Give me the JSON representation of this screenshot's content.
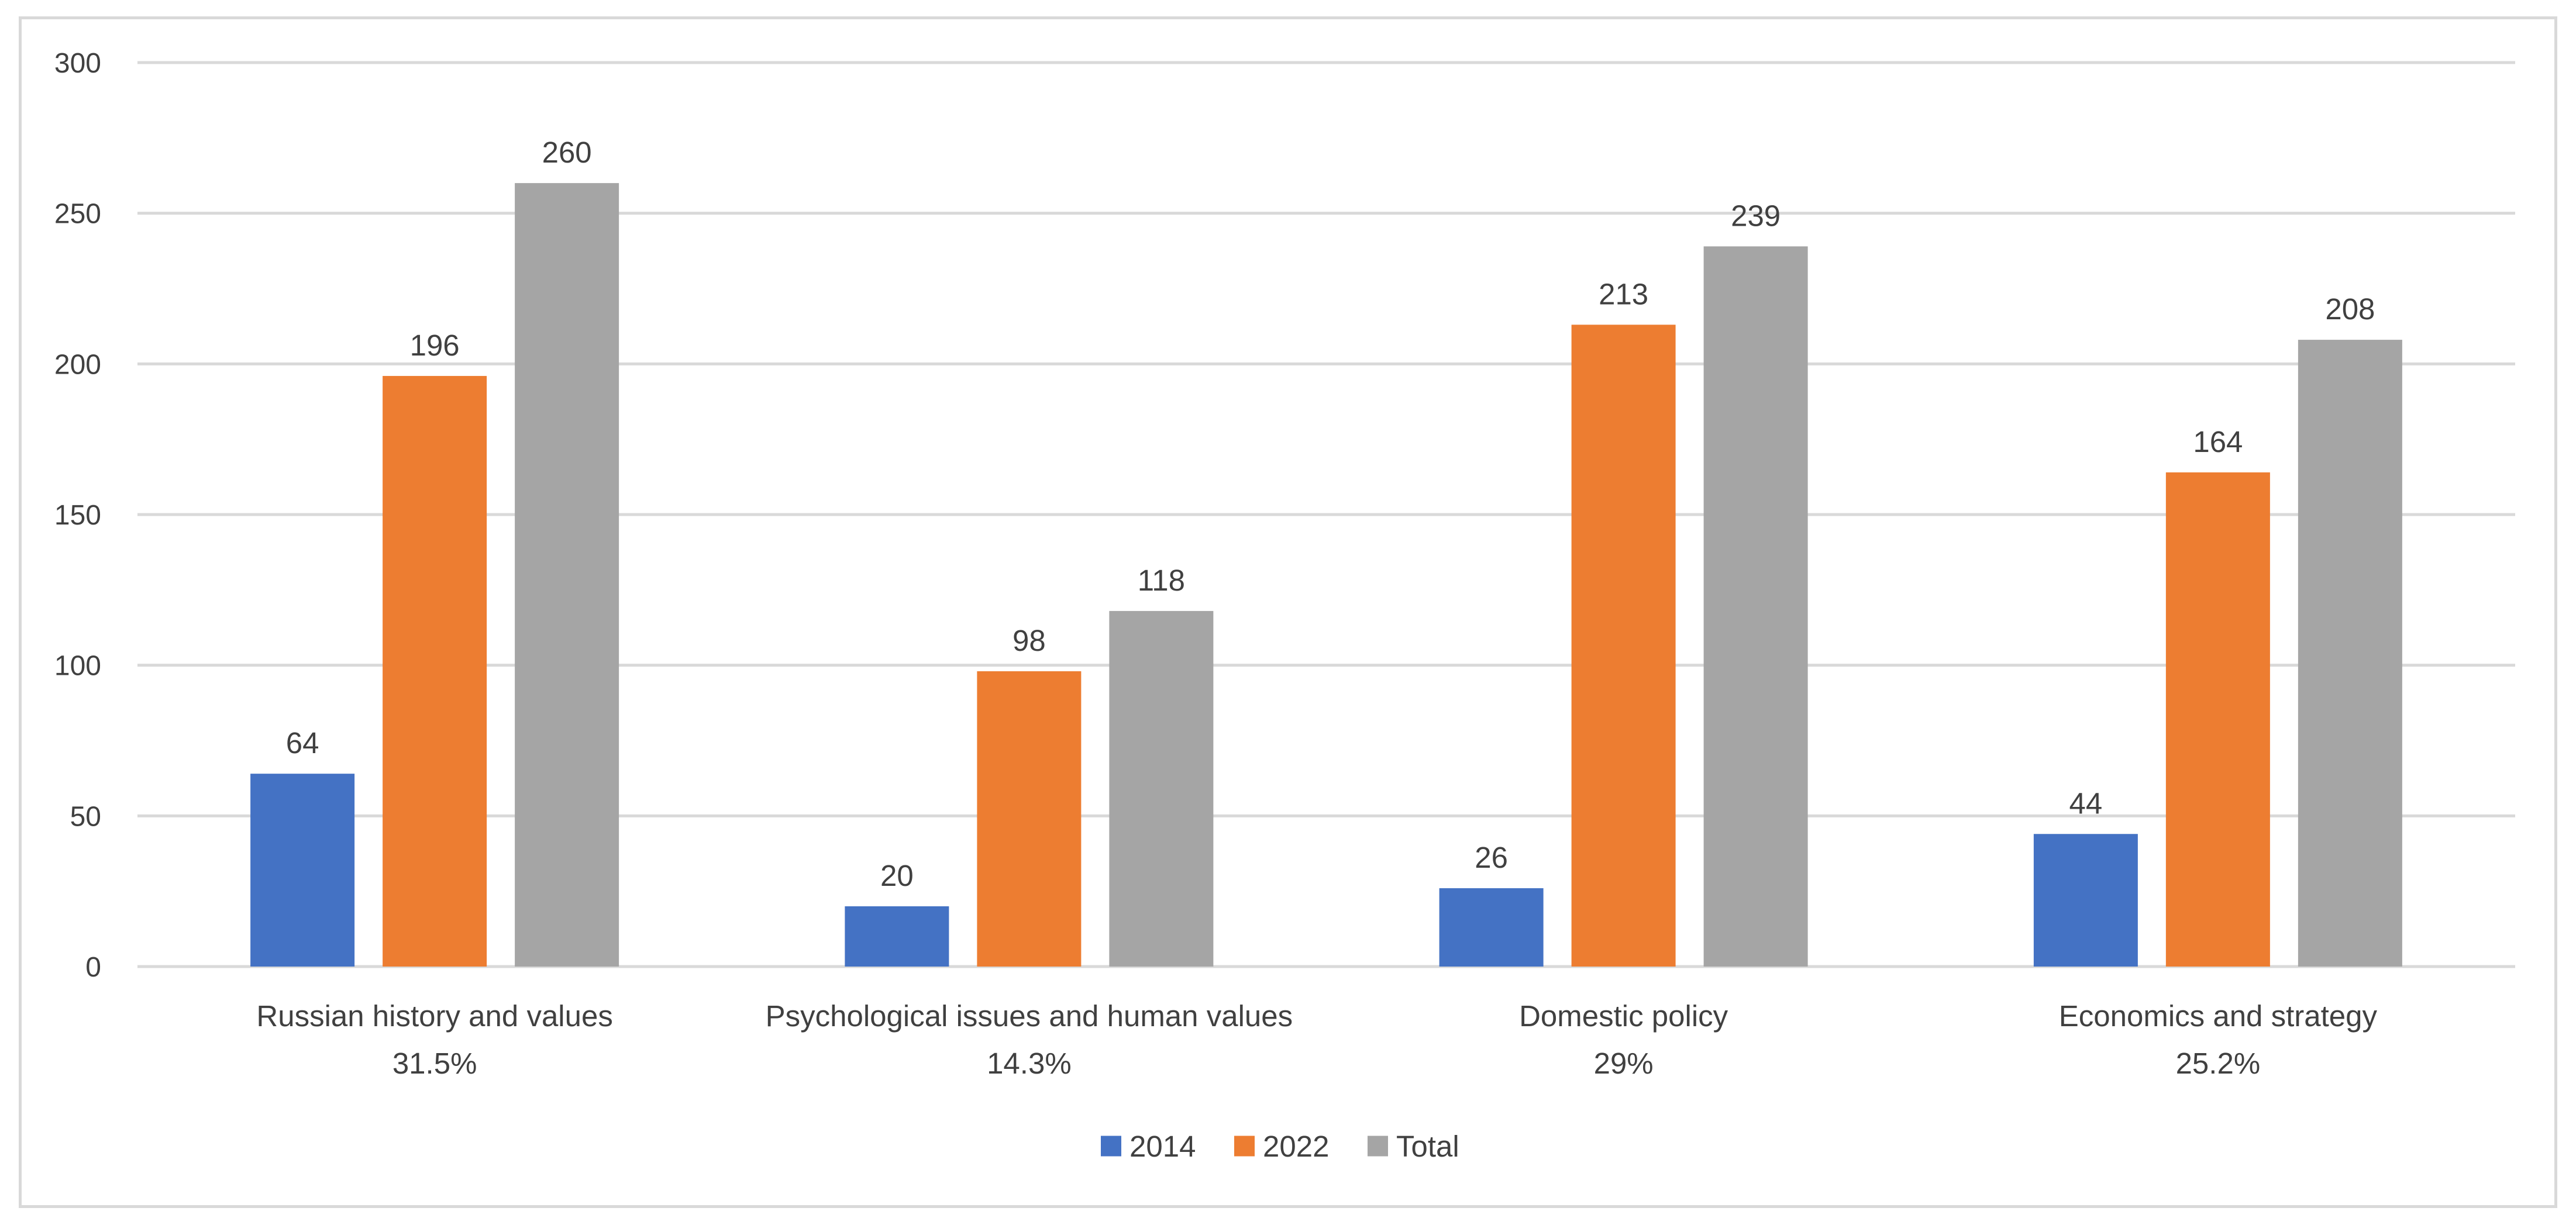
{
  "chart_data": {
    "type": "bar",
    "title": "",
    "xlabel": "",
    "ylabel": "",
    "ylim": [
      0,
      300
    ],
    "yticks": [
      0,
      50,
      100,
      150,
      200,
      250,
      300
    ],
    "grid": true,
    "legend_position": "bottom",
    "categories": [
      {
        "line1": "Russian history and values",
        "line2": "31.5%"
      },
      {
        "line1": "Psychological issues and human values",
        "line2": "14.3%"
      },
      {
        "line1": "Domestic policy",
        "line2": "29%"
      },
      {
        "line1": "Economics and strategy",
        "line2": "25.2%"
      }
    ],
    "series": [
      {
        "name": "2014",
        "color": "#4472c4",
        "values": [
          64,
          20,
          26,
          44
        ]
      },
      {
        "name": "2022",
        "color": "#ed7d31",
        "values": [
          196,
          98,
          213,
          164
        ]
      },
      {
        "name": "Total",
        "color": "#a5a5a5",
        "values": [
          260,
          118,
          239,
          208
        ]
      }
    ]
  }
}
